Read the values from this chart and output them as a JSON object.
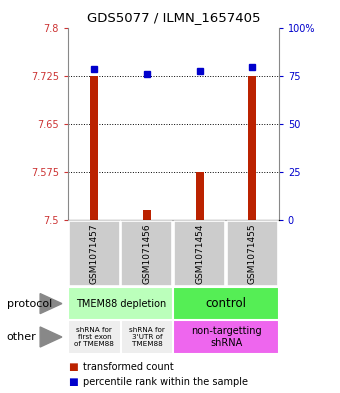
{
  "title": "GDS5077 / ILMN_1657405",
  "samples": [
    "GSM1071457",
    "GSM1071456",
    "GSM1071454",
    "GSM1071455"
  ],
  "bar_values": [
    7.725,
    7.515,
    7.575,
    7.725
  ],
  "dot_values": [
    7.735,
    7.728,
    7.732,
    7.738
  ],
  "bar_base": 7.5,
  "ylim_left": [
    7.5,
    7.8
  ],
  "ylim_right": [
    0,
    100
  ],
  "yticks_left": [
    7.5,
    7.575,
    7.65,
    7.725,
    7.8
  ],
  "ytick_labels_left": [
    "7.5",
    "7.575",
    "7.65",
    "7.725",
    "7.8"
  ],
  "yticks_right": [
    0,
    25,
    50,
    75,
    100
  ],
  "ytick_labels_right": [
    "0",
    "25",
    "50",
    "75",
    "100%"
  ],
  "dotted_lines": [
    7.725,
    7.65,
    7.575
  ],
  "bar_color": "#bb2200",
  "dot_color": "#0000cc",
  "protocol_labels": [
    "TMEM88 depletion",
    "control"
  ],
  "protocol_colors": [
    "#bbffbb",
    "#55ee55"
  ],
  "other_labels_left1": "shRNA for\nfirst exon\nof TMEM88",
  "other_labels_left2": "shRNA for\n3'UTR of\nTMEM88",
  "other_labels_right": "non-targetting\nshRNA",
  "other_color_left": "#eeeeee",
  "other_color_right": "#ee66ee",
  "sample_bg_color": "#cccccc",
  "legend_red_label": "transformed count",
  "legend_blue_label": "percentile rank within the sample",
  "protocol_row_label": "protocol",
  "other_row_label": "other",
  "arrow_color": "#888888"
}
